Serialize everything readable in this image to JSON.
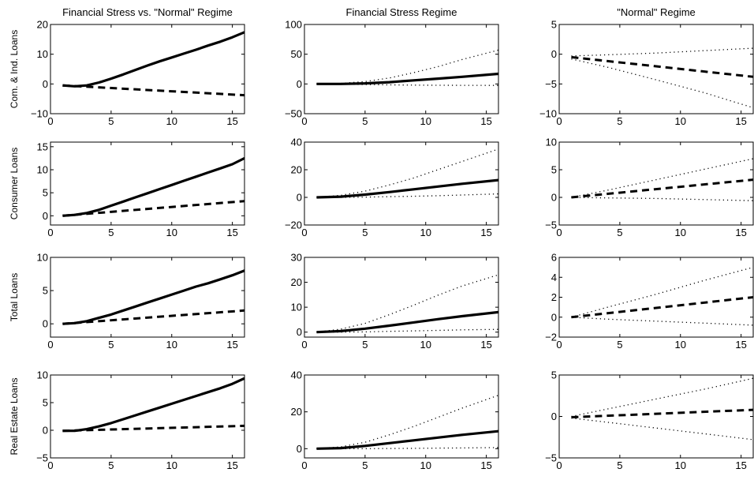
{
  "figure": {
    "column_titles": [
      "Financial Stress vs. \"Normal\" Regime",
      "Financial Stress Regime",
      "\"Normal\" Regime"
    ],
    "row_labels": [
      "Com. & Ind. Loans",
      "Consumer Loans",
      "Total Loans",
      "Real Estate Loans"
    ]
  },
  "chart_data": [
    {
      "type": "line",
      "row": 0,
      "col": 0,
      "xlim": [
        0,
        16
      ],
      "ylim": [
        -10,
        20
      ],
      "xticks": [
        0,
        5,
        10,
        15
      ],
      "yticks": [
        -10,
        0,
        10,
        20
      ],
      "ytick_labels": [
        "−10",
        "0",
        "10",
        "20"
      ],
      "series": [
        {
          "style": "solid",
          "x": [
            1,
            2,
            3,
            4,
            5,
            6,
            7,
            8,
            9,
            10,
            11,
            12,
            13,
            14,
            15,
            16
          ],
          "values": [
            -0.5,
            -0.8,
            -0.5,
            0.5,
            1.8,
            3.2,
            4.7,
            6.2,
            7.6,
            8.9,
            10.2,
            11.5,
            12.9,
            14.2,
            15.7,
            17.4
          ]
        },
        {
          "style": "dashed",
          "x": [
            1,
            16
          ],
          "values": [
            -0.5,
            -3.8
          ]
        }
      ]
    },
    {
      "type": "line",
      "row": 0,
      "col": 1,
      "xlim": [
        0,
        16
      ],
      "ylim": [
        -50,
        100
      ],
      "xticks": [
        0,
        5,
        10,
        15
      ],
      "yticks": [
        -50,
        0,
        50,
        100
      ],
      "ytick_labels": [
        "−50",
        "0",
        "50",
        "100"
      ],
      "series": [
        {
          "style": "solid",
          "x": [
            1,
            3,
            5,
            7,
            9,
            11,
            13,
            16
          ],
          "values": [
            0,
            0,
            1,
            3,
            6,
            9,
            12,
            17
          ]
        },
        {
          "style": "dotted",
          "x": [
            1,
            3,
            5,
            7,
            9,
            11,
            13,
            16
          ],
          "values": [
            0,
            1,
            4,
            10,
            19,
            29,
            41,
            57
          ]
        },
        {
          "style": "dotted",
          "x": [
            1,
            3,
            5,
            7,
            9,
            11,
            13,
            16
          ],
          "values": [
            0,
            -0.5,
            -1,
            -1.5,
            -2,
            -2.2,
            -2.3,
            -2.5
          ]
        }
      ]
    },
    {
      "type": "line",
      "row": 0,
      "col": 2,
      "xlim": [
        0,
        16
      ],
      "ylim": [
        -10,
        5
      ],
      "xticks": [
        0,
        5,
        10,
        15
      ],
      "yticks": [
        -10,
        -5,
        0,
        5
      ],
      "ytick_labels": [
        "−10",
        "−5",
        "0",
        "5"
      ],
      "series": [
        {
          "style": "dashed",
          "x": [
            1,
            16
          ],
          "values": [
            -0.5,
            -3.8
          ]
        },
        {
          "style": "dotted",
          "x": [
            1,
            4,
            8,
            12,
            16
          ],
          "values": [
            -0.3,
            -0.1,
            0.2,
            0.6,
            1
          ]
        },
        {
          "style": "dotted",
          "x": [
            1,
            4,
            8,
            12,
            16
          ],
          "values": [
            -0.8,
            -2.2,
            -4.3,
            -6.5,
            -9
          ]
        }
      ]
    },
    {
      "type": "line",
      "row": 1,
      "col": 0,
      "xlim": [
        0,
        16
      ],
      "ylim": [
        -2,
        16
      ],
      "xticks": [
        0,
        5,
        10,
        15
      ],
      "yticks": [
        0,
        5,
        10,
        15
      ],
      "ytick_labels": [
        "0",
        "5",
        "10",
        "15"
      ],
      "series": [
        {
          "style": "solid",
          "x": [
            1,
            2,
            3,
            4,
            5,
            6,
            7,
            8,
            9,
            10,
            11,
            12,
            13,
            14,
            15,
            16
          ],
          "values": [
            0,
            0.2,
            0.6,
            1.3,
            2.2,
            3.1,
            4,
            4.9,
            5.8,
            6.7,
            7.6,
            8.5,
            9.4,
            10.3,
            11.2,
            12.5
          ]
        },
        {
          "style": "dashed",
          "x": [
            1,
            16
          ],
          "values": [
            0,
            3.2
          ]
        }
      ]
    },
    {
      "type": "line",
      "row": 1,
      "col": 1,
      "xlim": [
        0,
        16
      ],
      "ylim": [
        -20,
        40
      ],
      "xticks": [
        0,
        5,
        10,
        15
      ],
      "yticks": [
        -20,
        0,
        20,
        40
      ],
      "ytick_labels": [
        "−20",
        "0",
        "20",
        "40"
      ],
      "series": [
        {
          "style": "solid",
          "x": [
            1,
            3,
            5,
            7,
            9,
            11,
            13,
            16
          ],
          "values": [
            0,
            0.5,
            2,
            3.8,
            5.8,
            7.8,
            9.8,
            12.5
          ]
        },
        {
          "style": "dotted",
          "x": [
            1,
            3,
            5,
            7,
            9,
            11,
            13,
            16
          ],
          "values": [
            0,
            1.5,
            4.5,
            9,
            14,
            20,
            26,
            35
          ]
        },
        {
          "style": "dotted",
          "x": [
            1,
            3,
            5,
            7,
            9,
            11,
            13,
            16
          ],
          "values": [
            0,
            0,
            0.2,
            0.5,
            0.8,
            1.2,
            1.7,
            2.5
          ]
        }
      ]
    },
    {
      "type": "line",
      "row": 1,
      "col": 2,
      "xlim": [
        0,
        16
      ],
      "ylim": [
        -5,
        10
      ],
      "xticks": [
        0,
        5,
        10,
        15
      ],
      "yticks": [
        -5,
        0,
        5,
        10
      ],
      "ytick_labels": [
        "−5",
        "0",
        "5",
        "10"
      ],
      "series": [
        {
          "style": "dashed",
          "x": [
            1,
            16
          ],
          "values": [
            0,
            3.2
          ]
        },
        {
          "style": "dotted",
          "x": [
            1,
            4,
            8,
            12,
            16
          ],
          "values": [
            0,
            1.3,
            3.2,
            5.1,
            7
          ]
        },
        {
          "style": "dotted",
          "x": [
            1,
            4,
            8,
            12,
            16
          ],
          "values": [
            0,
            -0.1,
            -0.2,
            -0.4,
            -0.6
          ]
        }
      ]
    },
    {
      "type": "line",
      "row": 2,
      "col": 0,
      "xlim": [
        0,
        16
      ],
      "ylim": [
        -2,
        10
      ],
      "xticks": [
        0,
        5,
        10,
        15
      ],
      "yticks": [
        0,
        5,
        10
      ],
      "ytick_labels": [
        "0",
        "5",
        "10"
      ],
      "series": [
        {
          "style": "solid",
          "x": [
            1,
            2,
            3,
            4,
            5,
            6,
            7,
            8,
            9,
            10,
            11,
            12,
            13,
            14,
            15,
            16
          ],
          "values": [
            0,
            0.1,
            0.4,
            0.9,
            1.4,
            2,
            2.6,
            3.2,
            3.8,
            4.4,
            5,
            5.6,
            6.1,
            6.7,
            7.3,
            8
          ]
        },
        {
          "style": "dashed",
          "x": [
            1,
            16
          ],
          "values": [
            0,
            2
          ]
        }
      ]
    },
    {
      "type": "line",
      "row": 2,
      "col": 1,
      "xlim": [
        0,
        16
      ],
      "ylim": [
        -2,
        30
      ],
      "xticks": [
        0,
        5,
        10,
        15
      ],
      "yticks": [
        0,
        10,
        20,
        30
      ],
      "ytick_labels": [
        "0",
        "10",
        "20",
        "30"
      ],
      "series": [
        {
          "style": "solid",
          "x": [
            1,
            3,
            5,
            7,
            9,
            11,
            13,
            16
          ],
          "values": [
            0,
            0.4,
            1.4,
            2.6,
            3.9,
            5.2,
            6.4,
            8
          ]
        },
        {
          "style": "dotted",
          "x": [
            1,
            3,
            5,
            7,
            9,
            11,
            13,
            16
          ],
          "values": [
            0,
            1.2,
            3.5,
            7,
            10.8,
            14.8,
            18.5,
            23
          ]
        },
        {
          "style": "dotted",
          "x": [
            1,
            3,
            5,
            7,
            9,
            11,
            13,
            16
          ],
          "values": [
            0,
            0,
            0.1,
            0.3,
            0.5,
            0.7,
            0.9,
            1.1
          ]
        }
      ]
    },
    {
      "type": "line",
      "row": 2,
      "col": 2,
      "xlim": [
        0,
        16
      ],
      "ylim": [
        -2,
        6
      ],
      "xticks": [
        0,
        5,
        10,
        15
      ],
      "yticks": [
        -2,
        0,
        2,
        4,
        6
      ],
      "ytick_labels": [
        "−2",
        "0",
        "2",
        "4",
        "6"
      ],
      "series": [
        {
          "style": "dashed",
          "x": [
            1,
            16
          ],
          "values": [
            0,
            2
          ]
        },
        {
          "style": "dotted",
          "x": [
            1,
            4,
            8,
            12,
            16
          ],
          "values": [
            0,
            1,
            2.3,
            3.7,
            5
          ]
        },
        {
          "style": "dotted",
          "x": [
            1,
            4,
            8,
            12,
            16
          ],
          "values": [
            0,
            -0.2,
            -0.4,
            -0.6,
            -0.8
          ]
        }
      ]
    },
    {
      "type": "line",
      "row": 3,
      "col": 0,
      "xlim": [
        0,
        16
      ],
      "ylim": [
        -5,
        10
      ],
      "xticks": [
        0,
        5,
        10,
        15
      ],
      "yticks": [
        -5,
        0,
        5,
        10
      ],
      "ytick_labels": [
        "−5",
        "0",
        "5",
        "10"
      ],
      "series": [
        {
          "style": "solid",
          "x": [
            1,
            2,
            3,
            4,
            5,
            6,
            7,
            8,
            9,
            10,
            11,
            12,
            13,
            14,
            15,
            16
          ],
          "values": [
            -0.1,
            -0.1,
            0.2,
            0.7,
            1.3,
            2,
            2.7,
            3.4,
            4.1,
            4.8,
            5.5,
            6.2,
            6.9,
            7.6,
            8.4,
            9.4
          ]
        },
        {
          "style": "dashed",
          "x": [
            1,
            16
          ],
          "values": [
            -0.1,
            0.8
          ]
        }
      ]
    },
    {
      "type": "line",
      "row": 3,
      "col": 1,
      "xlim": [
        0,
        16
      ],
      "ylim": [
        -5,
        40
      ],
      "xticks": [
        0,
        5,
        10,
        15
      ],
      "yticks": [
        0,
        20,
        40
      ],
      "ytick_labels": [
        "0",
        "20",
        "40"
      ],
      "series": [
        {
          "style": "solid",
          "x": [
            1,
            3,
            5,
            7,
            9,
            11,
            13,
            16
          ],
          "values": [
            0,
            0.3,
            1.5,
            3,
            4.5,
            6,
            7.5,
            9.5
          ]
        },
        {
          "style": "dotted",
          "x": [
            1,
            3,
            5,
            7,
            9,
            11,
            13,
            16
          ],
          "values": [
            0,
            1,
            3.5,
            7.5,
            12,
            17,
            22,
            29
          ]
        },
        {
          "style": "dotted",
          "x": [
            1,
            3,
            5,
            7,
            9,
            11,
            13,
            16
          ],
          "values": [
            0,
            0,
            0,
            0.1,
            0.2,
            0.3,
            0.4,
            0.6
          ]
        }
      ]
    },
    {
      "type": "line",
      "row": 3,
      "col": 2,
      "xlim": [
        0,
        16
      ],
      "ylim": [
        -5,
        5
      ],
      "xticks": [
        0,
        5,
        10,
        15
      ],
      "yticks": [
        -5,
        0,
        5
      ],
      "ytick_labels": [
        "−5",
        "0",
        "5"
      ],
      "series": [
        {
          "style": "dashed",
          "x": [
            1,
            16
          ],
          "values": [
            -0.1,
            0.8
          ]
        },
        {
          "style": "dotted",
          "x": [
            1,
            4,
            8,
            12,
            16
          ],
          "values": [
            0,
            0.9,
            2.1,
            3.3,
            4.6
          ]
        },
        {
          "style": "dotted",
          "x": [
            1,
            4,
            8,
            12,
            16
          ],
          "values": [
            -0.2,
            -0.7,
            -1.4,
            -2.1,
            -2.8
          ]
        }
      ]
    }
  ]
}
